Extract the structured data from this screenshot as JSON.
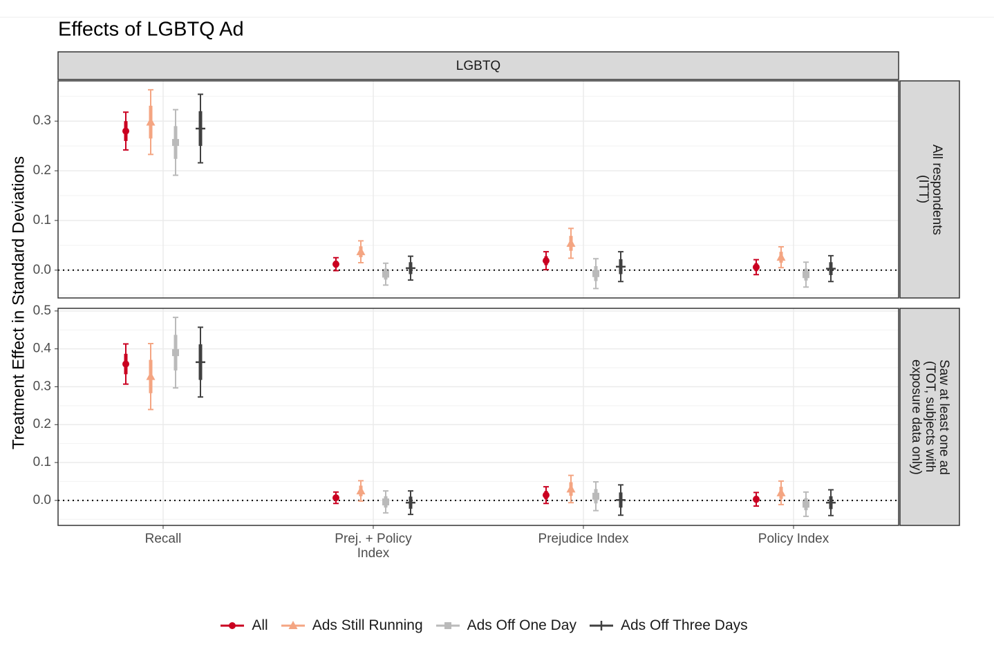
{
  "chart_data": [
    {
      "type": "errorbar",
      "title": "Effects of LGBTQ Ad",
      "column_label": "LGBTQ",
      "y_label": "Treatment Effect in Standard Deviations",
      "row_label": "All respondents\n(ITT)",
      "ylim": [
        -0.056,
        0.381
      ],
      "yticks": [
        {
          "value": 0,
          "label": "0.0"
        },
        0.1,
        0.2,
        0.3
      ],
      "grid": true,
      "reference_line": 0,
      "series": [
        {
          "name": "All",
          "color": "#ca0020",
          "marker": "circle",
          "values": [
            0.28,
            0.012,
            0.019,
            0.006
          ],
          "errors": [
            0.038,
            0.013,
            0.018,
            0.015
          ],
          "inner_errors": [
            0.02,
            0.007,
            0.009,
            0.008
          ]
        },
        {
          "name": "Ads Still Running",
          "color": "#f4a582",
          "marker": "triangle",
          "values": [
            0.298,
            0.037,
            0.054,
            0.026
          ],
          "errors": [
            0.065,
            0.022,
            0.03,
            0.021
          ],
          "inner_errors": [
            0.033,
            0.011,
            0.015,
            0.011
          ]
        },
        {
          "name": "Ads Off One Day",
          "color": "#bababa",
          "marker": "square",
          "values": [
            0.257,
            -0.008,
            -0.007,
            -0.009
          ],
          "errors": [
            0.066,
            0.022,
            0.03,
            0.025
          ],
          "inner_errors": [
            0.033,
            0.011,
            0.015,
            0.012
          ]
        },
        {
          "name": "Ads Off Three Days",
          "color": "#404040",
          "marker": "plus",
          "values": [
            0.285,
            0.004,
            0.007,
            0.003
          ],
          "errors": [
            0.069,
            0.024,
            0.03,
            0.026
          ],
          "inner_errors": [
            0.035,
            0.012,
            0.015,
            0.013
          ]
        }
      ]
    },
    {
      "type": "errorbar",
      "row_label": "Saw at least one ad\n(TOT, subjects with\nexposure data only)",
      "categories": [
        "Recall",
        "Prej. + Policy\nIndex",
        "Prejudice Index",
        "Policy Index"
      ],
      "ylim": [
        -0.066,
        0.507
      ],
      "yticks": [
        {
          "value": 0,
          "label": "0.0"
        },
        0.1,
        0.2,
        0.3,
        0.4,
        0.5
      ],
      "grid": true,
      "reference_line": 0,
      "series": [
        {
          "values": [
            0.36,
            0.007,
            0.014,
            0.003
          ],
          "errors": [
            0.053,
            0.015,
            0.022,
            0.018
          ],
          "inner_errors": [
            0.027,
            0.008,
            0.011,
            0.009
          ]
        },
        {
          "values": [
            0.327,
            0.025,
            0.03,
            0.02
          ],
          "errors": [
            0.087,
            0.027,
            0.036,
            0.031
          ],
          "inner_errors": [
            0.044,
            0.014,
            0.018,
            0.016
          ]
        },
        {
          "values": [
            0.39,
            -0.004,
            0.011,
            -0.01
          ],
          "errors": [
            0.093,
            0.029,
            0.038,
            0.032
          ],
          "inner_errors": [
            0.047,
            0.015,
            0.019,
            0.016
          ]
        },
        {
          "values": [
            0.365,
            -0.006,
            0.001,
            -0.006
          ],
          "errors": [
            0.092,
            0.031,
            0.04,
            0.034
          ],
          "inner_errors": [
            0.047,
            0.016,
            0.02,
            0.017
          ]
        }
      ]
    }
  ]
}
